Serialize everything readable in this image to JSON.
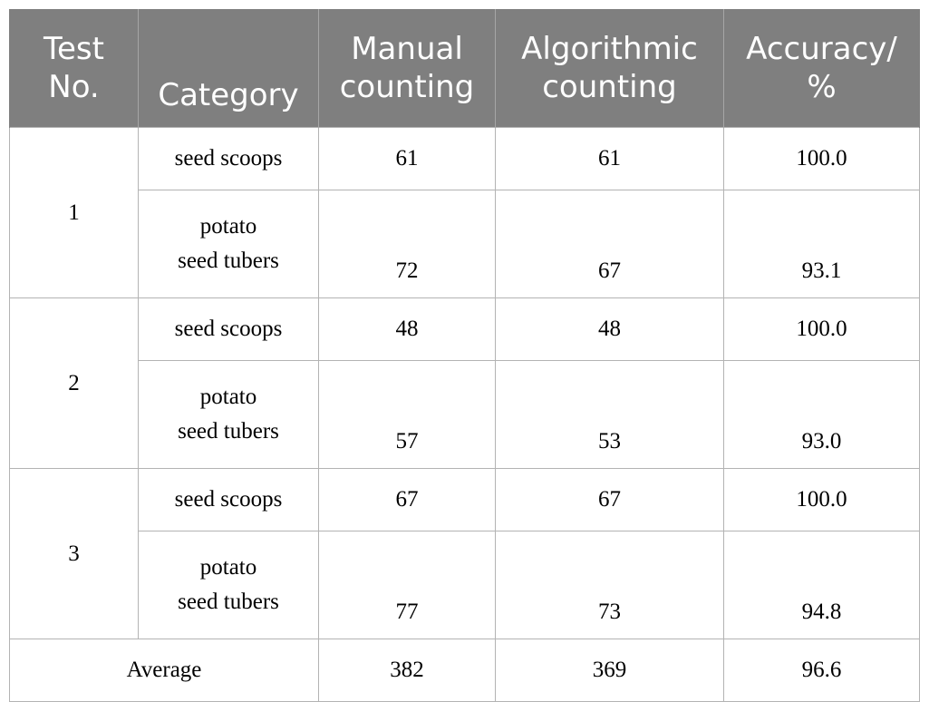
{
  "table": {
    "headers": [
      {
        "line1": "Test",
        "line2": "No."
      },
      {
        "line1": "",
        "line2": "Category"
      },
      {
        "line1": "Manual",
        "line2": "counting"
      },
      {
        "line1": "Algorithmic",
        "line2": "counting"
      },
      {
        "line1": "Accuracy/",
        "line2": "%"
      }
    ],
    "tests": [
      {
        "test_no": "1",
        "rows": [
          {
            "category_line1": "seed scoops",
            "category_line2": "",
            "manual": "61",
            "algorithmic": "61",
            "accuracy": "100.0"
          },
          {
            "category_line1": "potato",
            "category_line2": "seed tubers",
            "manual": "72",
            "algorithmic": "67",
            "accuracy": "93.1"
          }
        ]
      },
      {
        "test_no": "2",
        "rows": [
          {
            "category_line1": "seed scoops",
            "category_line2": "",
            "manual": "48",
            "algorithmic": "48",
            "accuracy": "100.0"
          },
          {
            "category_line1": "potato",
            "category_line2": "seed tubers",
            "manual": "57",
            "algorithmic": "53",
            "accuracy": "93.0"
          }
        ]
      },
      {
        "test_no": "3",
        "rows": [
          {
            "category_line1": "seed scoops",
            "category_line2": "",
            "manual": "67",
            "algorithmic": "67",
            "accuracy": "100.0"
          },
          {
            "category_line1": "potato",
            "category_line2": "seed tubers",
            "manual": "77",
            "algorithmic": "73",
            "accuracy": "94.8"
          }
        ]
      }
    ],
    "average": {
      "label": "Average",
      "manual": "382",
      "algorithmic": "369",
      "accuracy": "96.6"
    }
  }
}
